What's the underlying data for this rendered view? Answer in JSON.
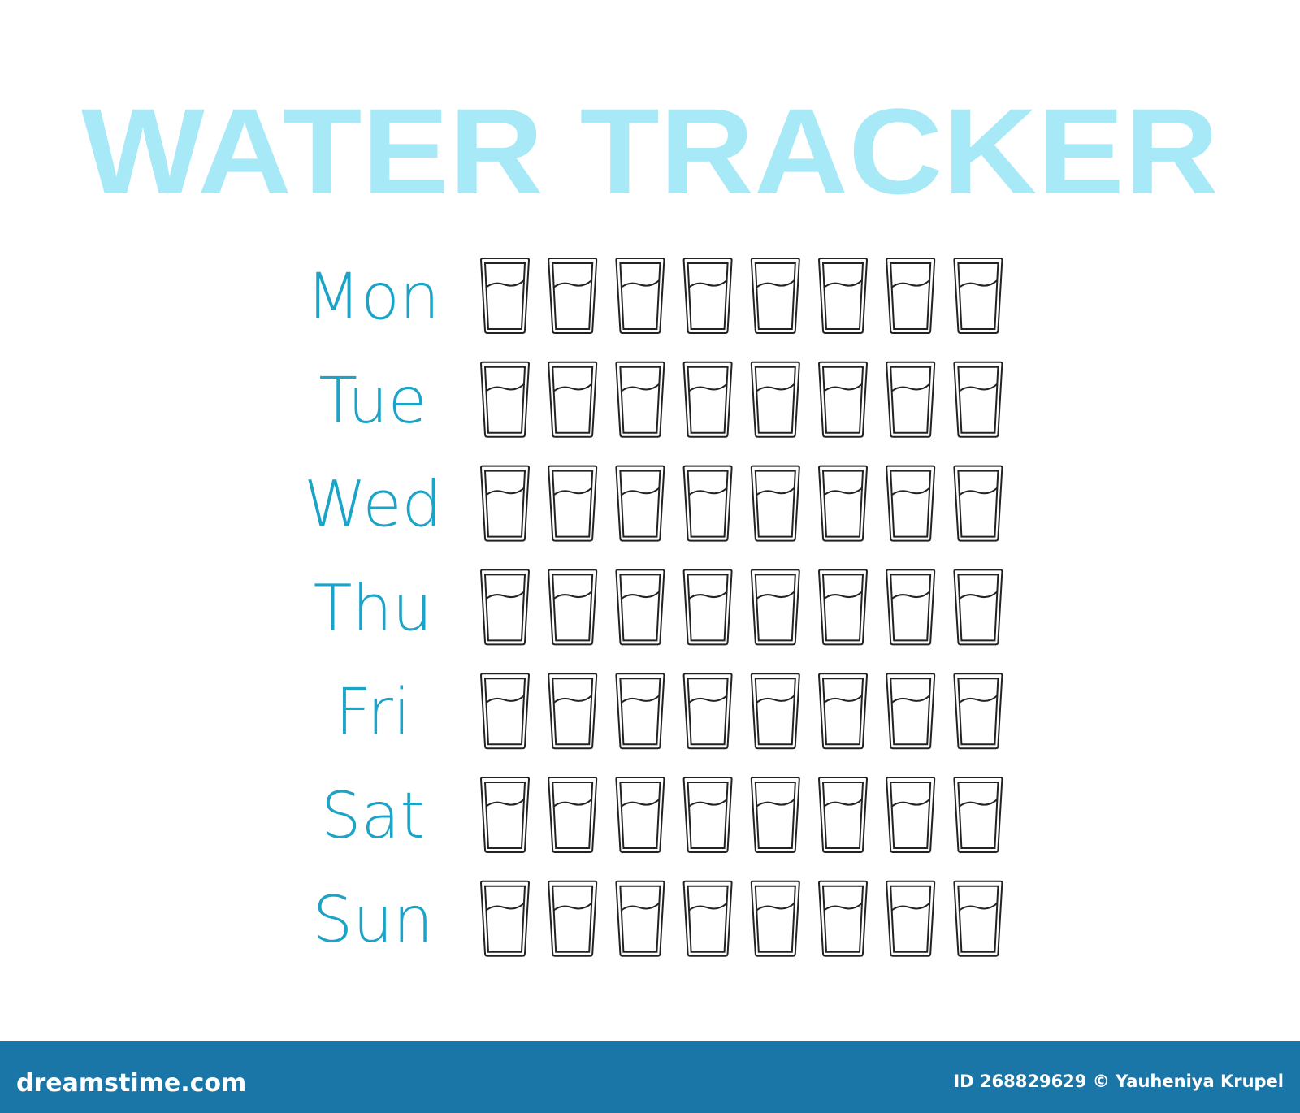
{
  "header": {
    "title": "WATER TRACKER"
  },
  "days": [
    "Mon",
    "Tue",
    "Wed",
    "Thu",
    "Fri",
    "Sat",
    "Sun"
  ],
  "footer": {
    "site": "dreamstime.com",
    "credit": "ID 268829629 © Yauheniya Krupel"
  }
}
